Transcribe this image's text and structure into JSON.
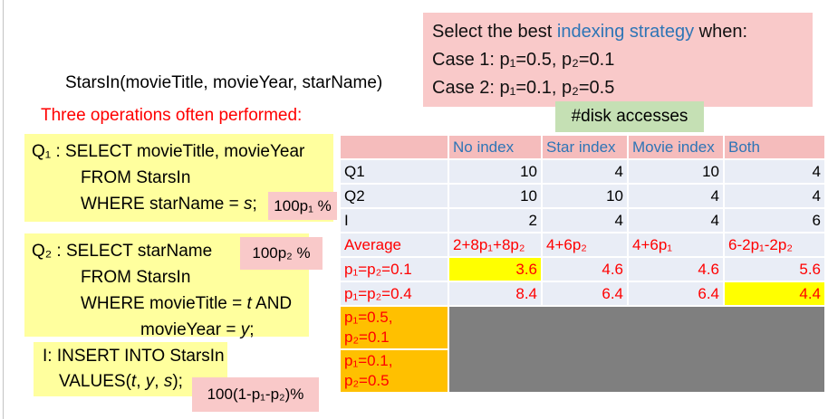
{
  "relation": "StarsIn(movieTitle, movieYear, starName)",
  "heading": "Three operations often performed:",
  "statement": {
    "prefix": "Select the best ",
    "highlight": "indexing strategy",
    "suffix": " when:",
    "case1": "Case 1: p₁=0.5, p₂=0.1",
    "case2": "Case 2: p₁=0.1, p₂=0.5"
  },
  "disk_label": "#disk accesses",
  "freq_labels": {
    "q1": "100p₁ %",
    "q2": "100p₂ %",
    "insert": "100(1-p₁-p₂)%"
  },
  "sql_boxes": [
    {
      "id": "q1-box",
      "lines": [
        {
          "ind": 0,
          "seg": [
            {
              "t": "Q₁ : SELECT movieTitle, movieYear"
            }
          ]
        },
        {
          "ind": 1,
          "seg": [
            {
              "t": "FROM StarsIn"
            }
          ]
        },
        {
          "ind": 1,
          "seg": [
            {
              "t": "WHERE starName = "
            },
            {
              "t": "s",
              "i": 1
            },
            {
              "t": ";"
            }
          ]
        }
      ]
    },
    {
      "id": "q2-box",
      "lines": [
        {
          "ind": 0,
          "seg": [
            {
              "t": "Q₂ : SELECT starName"
            }
          ]
        },
        {
          "ind": 1,
          "seg": [
            {
              "t": "FROM StarsIn"
            }
          ]
        },
        {
          "ind": 1,
          "seg": [
            {
              "t": "WHERE movieTitle = "
            },
            {
              "t": "t",
              "i": 1
            },
            {
              "t": " AND"
            }
          ]
        },
        {
          "ind": 2,
          "seg": [
            {
              "t": "movieYear = "
            },
            {
              "t": "y",
              "i": 1
            },
            {
              "t": ";"
            }
          ]
        }
      ]
    },
    {
      "id": "insert-box",
      "lines": [
        {
          "ind": 0,
          "seg": [
            {
              "t": "I: INSERT INTO StarsIn"
            }
          ]
        },
        {
          "ind": 1,
          "seg": [
            {
              "t": "VALUES("
            },
            {
              "t": "t",
              "i": 1
            },
            {
              "t": ", "
            },
            {
              "t": "y",
              "i": 1
            },
            {
              "t": ", "
            },
            {
              "t": "s",
              "i": 1
            },
            {
              "t": ");"
            }
          ]
        }
      ]
    }
  ],
  "table": {
    "header": [
      "",
      "No index",
      "Star index",
      "Movie index",
      "Both"
    ],
    "rows": [
      {
        "label": "Q1",
        "type": "data",
        "values": [
          "10",
          "4",
          "10",
          "4"
        ]
      },
      {
        "label": "Q2",
        "type": "data",
        "values": [
          "10",
          "10",
          "4",
          "4"
        ]
      },
      {
        "label": "I",
        "type": "data",
        "values": [
          "2",
          "4",
          "4",
          "6"
        ]
      },
      {
        "label": "Average",
        "type": "formula",
        "values": [
          "2+8p₁+8p₂",
          "4+6p₂",
          "4+6p₁",
          "6-2p₁-2p₂"
        ]
      },
      {
        "label": "p₁=p₂=0.1",
        "type": "result",
        "values": [
          "3.6",
          "4.6",
          "4.6",
          "5.6"
        ],
        "highlight": 0
      },
      {
        "label": "p₁=p₂=0.4",
        "type": "result",
        "values": [
          "8.4",
          "6.4",
          "6.4",
          "4.4"
        ],
        "highlight": 3
      },
      {
        "label": [
          "p₁=0.5,",
          "p₂=0.1"
        ],
        "type": "hidden",
        "gray": true
      },
      {
        "label": [
          "p₁=0.1,",
          "p₂=0.5"
        ],
        "type": "hidden"
      }
    ]
  },
  "colors": {
    "pink_box": "#f9c9c9",
    "header_pink": "#f5bcbc",
    "yellow_box": "#ffff9e",
    "highlight_yellow": "#ffff00",
    "orange": "#ffc000",
    "hidden_gray": "#7f7f7f",
    "green": "#c5e0b4",
    "blue_text": "#2e75b6",
    "red_text": "#ff0000",
    "row_lavender": "#e9edf6"
  }
}
